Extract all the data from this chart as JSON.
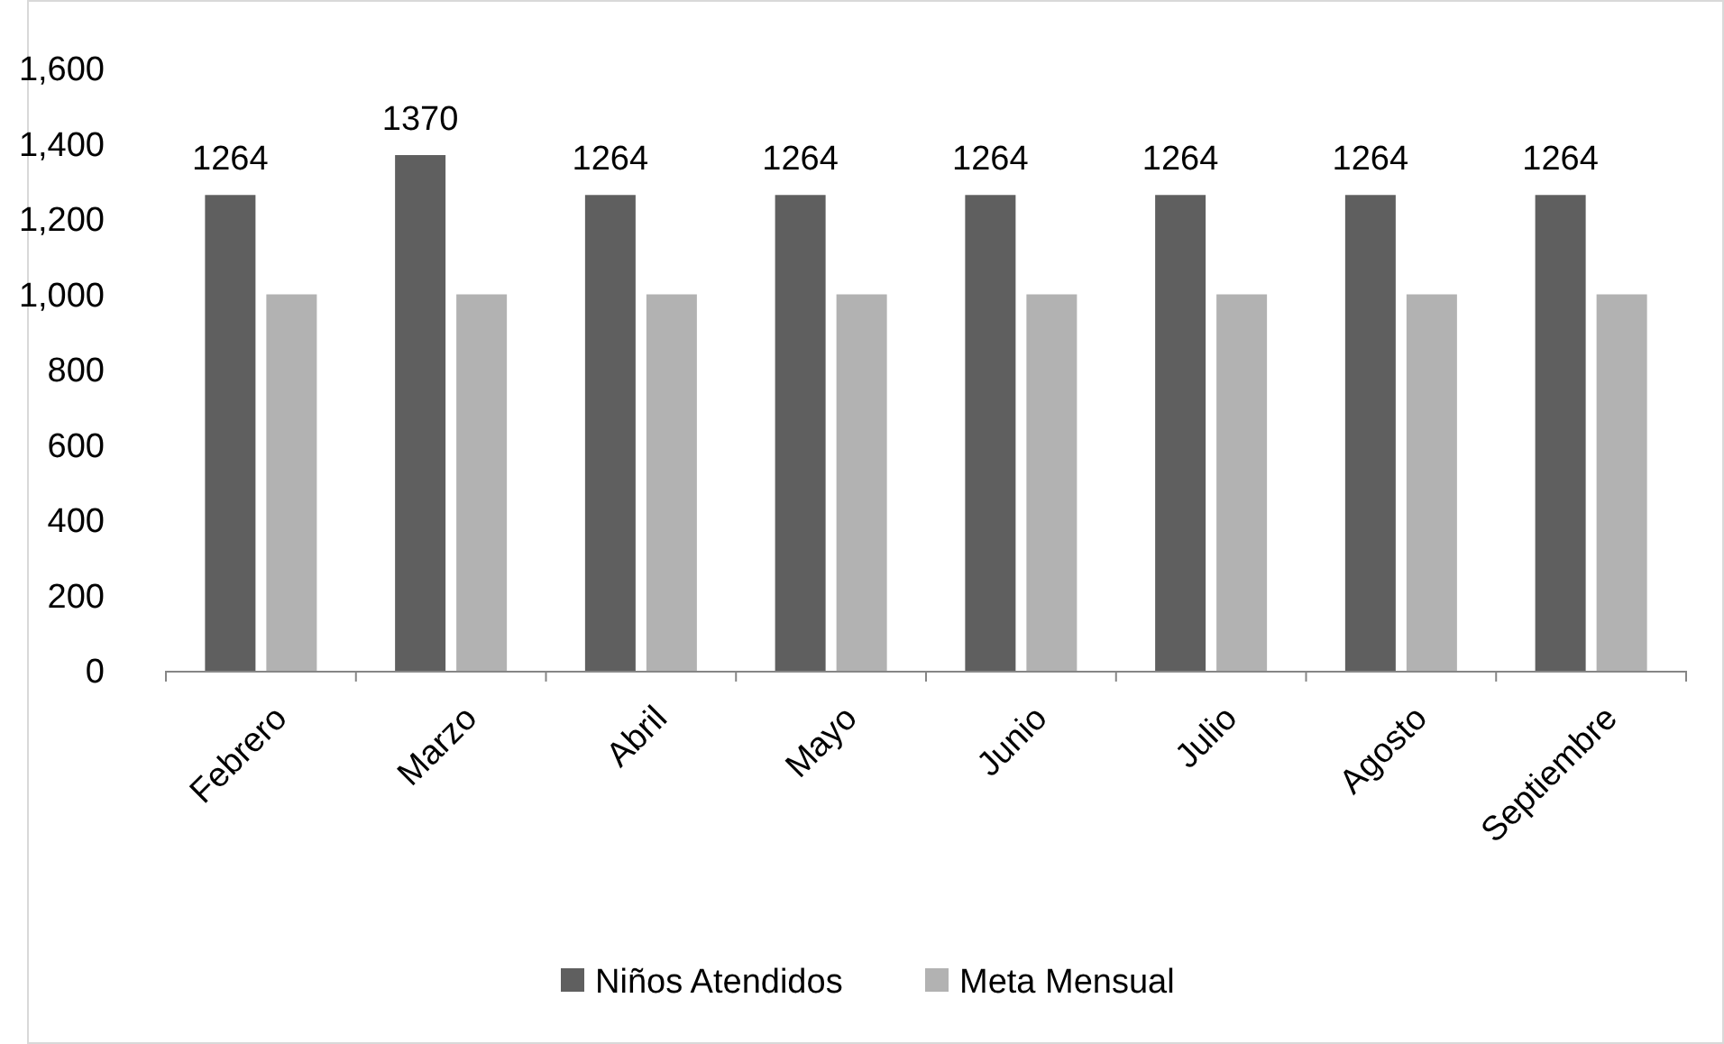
{
  "chart_data": {
    "type": "bar",
    "categories": [
      "Febrero",
      "Marzo",
      "Abril",
      "Mayo",
      "Junio",
      "Julio",
      "Agosto",
      "Septiembre"
    ],
    "series": [
      {
        "name": "Niños Atendidos",
        "color": "#5f5f5f",
        "values": [
          1264,
          1370,
          1264,
          1264,
          1264,
          1264,
          1264,
          1264
        ],
        "value_labels": [
          "1264",
          "1370",
          "1264",
          "1264",
          "1264",
          "1264",
          "1264",
          "1264"
        ]
      },
      {
        "name": "Meta Mensual",
        "color": "#b2b2b2",
        "values": [
          1000,
          1000,
          1000,
          1000,
          1000,
          1000,
          1000,
          1000
        ]
      }
    ],
    "ylim": [
      0,
      1600
    ],
    "yticks": [
      {
        "value": 0,
        "label": "0"
      },
      {
        "value": 200,
        "label": "200"
      },
      {
        "value": 400,
        "label": "400"
      },
      {
        "value": 600,
        "label": "600"
      },
      {
        "value": 800,
        "label": "800"
      },
      {
        "value": 1000,
        "label": "1,000"
      },
      {
        "value": 1200,
        "label": "1,200"
      },
      {
        "value": 1400,
        "label": "1,400"
      },
      {
        "value": 1600,
        "label": "1,600"
      }
    ],
    "grid": false,
    "legend": "bottom"
  }
}
